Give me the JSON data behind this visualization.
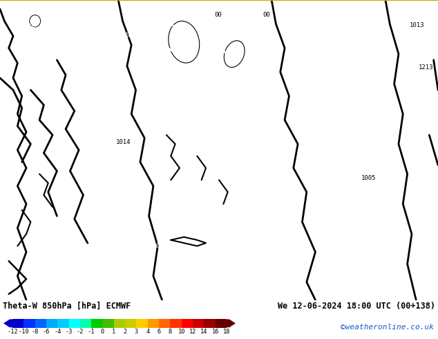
{
  "title_left": "Theta-W 850hPa [hPa] ECMWF",
  "title_right": "We 12-06-2024 18:00 UTC (00+138)",
  "credit": "©weatheronline.co.uk",
  "colorbar_values": [
    -12,
    -10,
    -8,
    -6,
    -4,
    -3,
    -2,
    -1,
    0,
    1,
    2,
    3,
    4,
    6,
    8,
    10,
    12,
    14,
    16,
    18
  ],
  "colorbar_colors": [
    "#0000cd",
    "#0033ff",
    "#0066ff",
    "#00aaff",
    "#00ccff",
    "#00ffff",
    "#00ffaa",
    "#00cc00",
    "#44bb00",
    "#aacc00",
    "#cccc00",
    "#ffcc00",
    "#ff9900",
    "#ff6600",
    "#ff3300",
    "#ff0000",
    "#cc0000",
    "#990000",
    "#660000"
  ],
  "map_bg": "#cc0000",
  "top_bar_color": "#ccaa00",
  "bottom_bg": "#ffffff",
  "figsize": [
    6.34,
    4.9
  ],
  "dpi": 100
}
